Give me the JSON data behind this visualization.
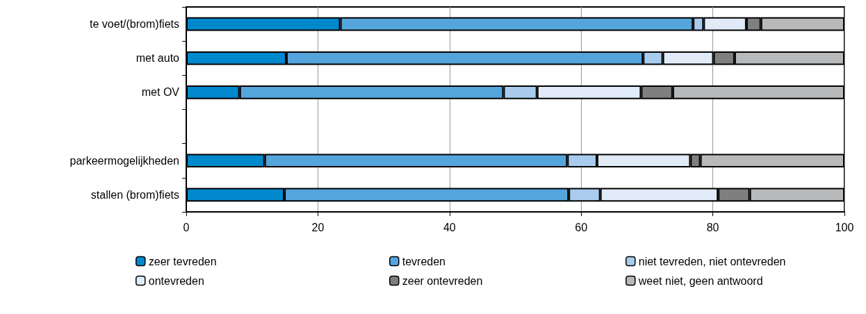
{
  "chart_data": {
    "type": "bar",
    "orientation": "horizontal",
    "stacked": true,
    "categories": [
      "te voet/(brom)fiets",
      "met auto",
      "met OV",
      null,
      "parkeermogelijkheden",
      "stallen (brom)fiets"
    ],
    "series": [
      {
        "name": "zeer tevreden",
        "color": "#0088cc",
        "values": [
          23.4,
          15.2,
          8.1,
          null,
          11.9,
          14.9
        ]
      },
      {
        "name": "tevreden",
        "color": "#55a5dd",
        "values": [
          53.6,
          54.2,
          40.1,
          null,
          46.0,
          43.2
        ]
      },
      {
        "name": "niet tevreden, niet ontevreden",
        "color": "#a9ccee",
        "values": [
          1.6,
          3.0,
          5.1,
          null,
          4.5,
          4.8
        ]
      },
      {
        "name": "ontevreden",
        "color": "#e0ebf7",
        "values": [
          6.5,
          7.7,
          15.8,
          null,
          14.2,
          17.9
        ]
      },
      {
        "name": "zeer ontevreden",
        "color": "#7f7f7f",
        "values": [
          2.2,
          3.2,
          4.8,
          null,
          1.5,
          4.8
        ]
      },
      {
        "name": "weet niet, geen antwoord",
        "color": "#b8b9ba",
        "values": [
          12.7,
          16.7,
          26.1,
          null,
          21.9,
          14.4
        ]
      }
    ],
    "xlim": [
      0,
      100
    ],
    "xticks": [
      0,
      20,
      40,
      60,
      80,
      100
    ],
    "grid": "x",
    "legend": "bottom"
  }
}
